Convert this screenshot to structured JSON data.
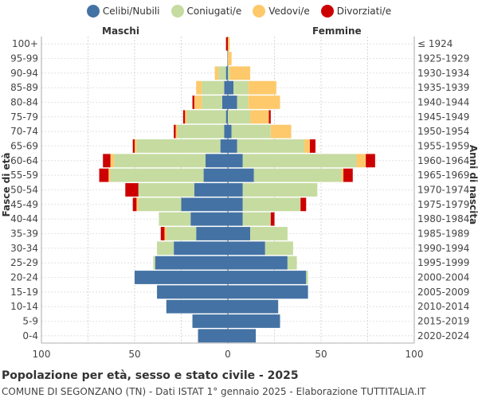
{
  "legend": [
    {
      "label": "Celibi/Nubili",
      "color": "#4472a4"
    },
    {
      "label": "Coniugati/e",
      "color": "#c5dba0"
    },
    {
      "label": "Vedovi/e",
      "color": "#fdc96b"
    },
    {
      "label": "Divorziati/e",
      "color": "#cc0000"
    }
  ],
  "header": {
    "left": "Maschi",
    "right": "Femmine"
  },
  "footer": {
    "title": "Popolazione per età, sesso e stato civile - 2025",
    "subtitle": "COMUNE DI SEGONZANO (TN) - Dati ISTAT 1° gennaio 2025 - Elaborazione TUTTITALIA.IT"
  },
  "chart_data": {
    "type": "bar",
    "orientation": "horizontal-population-pyramid",
    "ylabel_left": "Fasce di età",
    "ylabel_right": "Anni di nascita",
    "xlim": [
      -100,
      100
    ],
    "xticks": [
      "100",
      "50",
      "0",
      "50",
      "100"
    ],
    "grid": true,
    "legend_position": "top",
    "age_groups": [
      "100+",
      "95-99",
      "90-94",
      "85-89",
      "80-84",
      "75-79",
      "70-74",
      "65-69",
      "60-64",
      "55-59",
      "50-54",
      "45-49",
      "40-44",
      "35-39",
      "30-34",
      "25-29",
      "20-24",
      "15-19",
      "10-14",
      "5-9",
      "0-4"
    ],
    "birth_years": [
      "≤ 1924",
      "1925-1929",
      "1930-1934",
      "1935-1939",
      "1940-1944",
      "1945-1949",
      "1950-1954",
      "1955-1959",
      "1960-1964",
      "1965-1969",
      "1970-1974",
      "1975-1979",
      "1980-1984",
      "1985-1989",
      "1990-1994",
      "1995-1999",
      "2000-2004",
      "2005-2009",
      "2010-2014",
      "2015-2019",
      "2020-2024"
    ],
    "series_order": [
      "Celibi/Nubili",
      "Coniugati/e",
      "Vedovi/e",
      "Divorziati/e"
    ],
    "males": [
      [
        0,
        0,
        0,
        1
      ],
      [
        0,
        0,
        0,
        0
      ],
      [
        1,
        4,
        2,
        0
      ],
      [
        2,
        12,
        3,
        0
      ],
      [
        3,
        11,
        4,
        1
      ],
      [
        1,
        21,
        1,
        1
      ],
      [
        2,
        25,
        1,
        1
      ],
      [
        4,
        45,
        1,
        1
      ],
      [
        12,
        49,
        2,
        4
      ],
      [
        13,
        50,
        1,
        5
      ],
      [
        18,
        30,
        0,
        7
      ],
      [
        25,
        23,
        1,
        2
      ],
      [
        20,
        17,
        0,
        0
      ],
      [
        17,
        16,
        1,
        2
      ],
      [
        29,
        9,
        0,
        0
      ],
      [
        39,
        1,
        0,
        0
      ],
      [
        50,
        0,
        0,
        0
      ],
      [
        38,
        0,
        0,
        0
      ],
      [
        33,
        0,
        0,
        0
      ],
      [
        19,
        0,
        0,
        0
      ],
      [
        16,
        0,
        0,
        0
      ]
    ],
    "females": [
      [
        0,
        0,
        1,
        0
      ],
      [
        0,
        0,
        2,
        0
      ],
      [
        0,
        1,
        11,
        0
      ],
      [
        3,
        8,
        15,
        0
      ],
      [
        5,
        6,
        17,
        0
      ],
      [
        0,
        12,
        10,
        1
      ],
      [
        2,
        21,
        11,
        0
      ],
      [
        5,
        36,
        3,
        3
      ],
      [
        8,
        61,
        5,
        5
      ],
      [
        14,
        47,
        1,
        5
      ],
      [
        8,
        40,
        0,
        0
      ],
      [
        8,
        31,
        0,
        3
      ],
      [
        8,
        15,
        0,
        2
      ],
      [
        12,
        20,
        0,
        0
      ],
      [
        20,
        15,
        0,
        0
      ],
      [
        32,
        5,
        0,
        0
      ],
      [
        42,
        1,
        0,
        0
      ],
      [
        43,
        0,
        0,
        0
      ],
      [
        27,
        0,
        0,
        0
      ],
      [
        28,
        0,
        0,
        0
      ],
      [
        15,
        0,
        0,
        0
      ]
    ]
  }
}
